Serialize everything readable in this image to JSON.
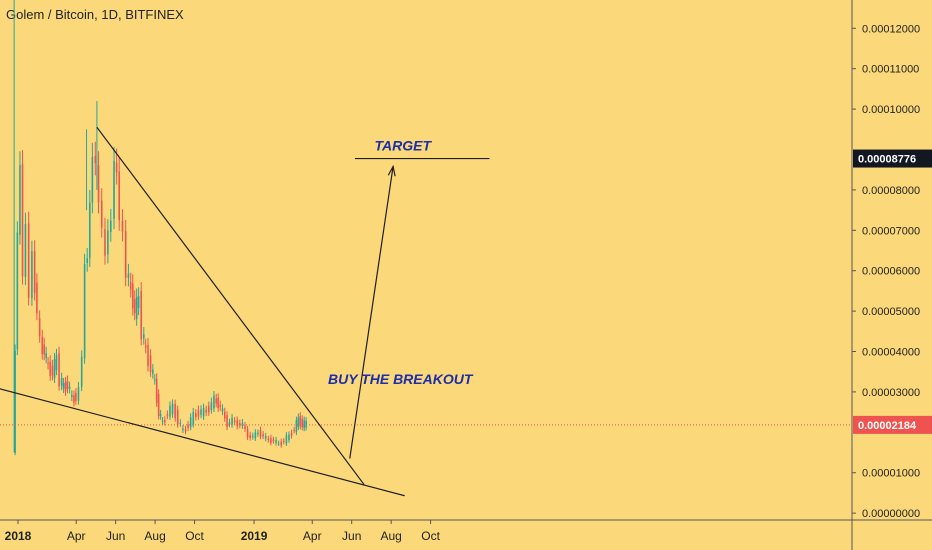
{
  "header": {
    "title": "Golem / Bitcoin, 1D, BITFINEX"
  },
  "colors": {
    "background": "#fbd97a",
    "up_candle": "#26a69a",
    "down_candle": "#ef5350",
    "line": "#1f1f1f",
    "annotation_text": "#1c2ea8",
    "price_line": "#ef5350"
  },
  "chart_data": {
    "type": "candlestick",
    "symbol": "Golem / Bitcoin",
    "interval": "1D",
    "exchange": "BITFINEX",
    "x_tick_labels": [
      "2018",
      "Apr",
      "Jun",
      "Aug",
      "Oct",
      "2019",
      "Apr",
      "Jun",
      "Aug",
      "Oct"
    ],
    "x_tick_dates": [
      "2018-01-01",
      "2018-04-01",
      "2018-06-01",
      "2018-08-01",
      "2018-10-01",
      "2019-01-01",
      "2019-04-01",
      "2019-06-01",
      "2019-08-01",
      "2019-10-01"
    ],
    "y_tick_labels": [
      "0.00012000",
      "0.00011000",
      "0.00010000",
      "0.00008000",
      "0.00007000",
      "0.00006000",
      "0.00005000",
      "0.00004000",
      "0.00003000",
      "0.00001000",
      "0.00000000"
    ],
    "y_tick_values": [
      0.00012,
      0.00011,
      0.0001,
      8e-05,
      7e-05,
      6e-05,
      5e-05,
      4e-05,
      3e-05,
      1e-05,
      0.0
    ],
    "ylim": [
      -1.7e-06,
      0.000127
    ],
    "price_series": [
      [
        "2017-12-26",
        1.5e-05
      ],
      [
        "2017-12-29",
        4e-05
      ],
      [
        "2018-01-02",
        7e-05
      ],
      [
        "2018-01-06",
        8.5e-05
      ],
      [
        "2018-01-10",
        6e-05
      ],
      [
        "2018-01-15",
        7e-05
      ],
      [
        "2018-01-20",
        5.5e-05
      ],
      [
        "2018-01-25",
        6.3e-05
      ],
      [
        "2018-02-01",
        5e-05
      ],
      [
        "2018-02-06",
        4.2e-05
      ],
      [
        "2018-02-12",
        4e-05
      ],
      [
        "2018-02-18",
        3.6e-05
      ],
      [
        "2018-02-25",
        3.5e-05
      ],
      [
        "2018-03-03",
        3.8e-05
      ],
      [
        "2018-03-08",
        3.3e-05
      ],
      [
        "2018-03-14",
        3.1e-05
      ],
      [
        "2018-03-20",
        3.2e-05
      ],
      [
        "2018-03-27",
        2.8e-05
      ],
      [
        "2018-04-02",
        2.9e-05
      ],
      [
        "2018-04-07",
        3e-05
      ],
      [
        "2018-04-12",
        4e-05
      ],
      [
        "2018-04-16",
        6e-05
      ],
      [
        "2018-04-20",
        6.5e-05
      ],
      [
        "2018-04-24",
        7.5e-05
      ],
      [
        "2018-04-28",
        9e-05
      ],
      [
        "2018-05-03",
        8.5e-05
      ],
      [
        "2018-05-08",
        7.8e-05
      ],
      [
        "2018-05-13",
        7e-05
      ],
      [
        "2018-05-18",
        6.4e-05
      ],
      [
        "2018-05-22",
        7e-05
      ],
      [
        "2018-05-27",
        7.2e-05
      ],
      [
        "2018-06-01",
        8.8e-05
      ],
      [
        "2018-06-04",
        8.3e-05
      ],
      [
        "2018-06-09",
        7.4e-05
      ],
      [
        "2018-06-14",
        6.8e-05
      ],
      [
        "2018-06-19",
        6e-05
      ],
      [
        "2018-06-26",
        5.5e-05
      ],
      [
        "2018-07-02",
        5e-05
      ],
      [
        "2018-07-08",
        5.3e-05
      ],
      [
        "2018-07-13",
        4.5e-05
      ],
      [
        "2018-07-19",
        4e-05
      ],
      [
        "2018-07-27",
        3.6e-05
      ],
      [
        "2018-08-02",
        3.2e-05
      ],
      [
        "2018-08-08",
        2.5e-05
      ],
      [
        "2018-08-14",
        2.2e-05
      ],
      [
        "2018-08-22",
        2.5e-05
      ],
      [
        "2018-08-30",
        2.6e-05
      ],
      [
        "2018-09-07",
        2.3e-05
      ],
      [
        "2018-09-15",
        2e-05
      ],
      [
        "2018-09-23",
        2.2e-05
      ],
      [
        "2018-10-01",
        2.4e-05
      ],
      [
        "2018-10-09",
        2.5e-05
      ],
      [
        "2018-10-17",
        2.5e-05
      ],
      [
        "2018-10-25",
        2.6e-05
      ],
      [
        "2018-11-02",
        2.8e-05
      ],
      [
        "2018-11-08",
        2.7e-05
      ],
      [
        "2018-11-15",
        2.5e-05
      ],
      [
        "2018-11-22",
        2.2e-05
      ],
      [
        "2018-11-30",
        2.3e-05
      ],
      [
        "2018-12-08",
        2.2e-05
      ],
      [
        "2018-12-16",
        2.2e-05
      ],
      [
        "2018-12-24",
        1.9e-05
      ],
      [
        "2019-01-01",
        1.9e-05
      ],
      [
        "2019-01-09",
        2e-05
      ],
      [
        "2019-01-17",
        1.9e-05
      ],
      [
        "2019-01-25",
        1.8e-05
      ],
      [
        "2019-02-02",
        1.8e-05
      ],
      [
        "2019-02-10",
        1.7e-05
      ],
      [
        "2019-02-18",
        1.8e-05
      ],
      [
        "2019-02-26",
        1.9e-05
      ],
      [
        "2019-03-06",
        2.1e-05
      ],
      [
        "2019-03-12",
        2.3e-05
      ],
      [
        "2019-03-18",
        2.2e-05
      ],
      [
        "2019-03-24",
        2.2e-05
      ]
    ],
    "current_price": "0.00002184",
    "current_price_value": 2.184e-05,
    "target_price": "0.00008776",
    "target_price_value": 8.776e-05,
    "annotations": {
      "target": "TARGET",
      "buy_breakout": "BUY THE BREAKOUT"
    },
    "trendlines": [
      {
        "name": "upper-resistance",
        "points": [
          [
            "2018-05-03",
            9.55e-05
          ],
          [
            "2019-06-20",
            7.1e-06
          ]
        ]
      },
      {
        "name": "lower-support",
        "points": [
          [
            "2017-12-03",
            3.08e-05
          ],
          [
            "2019-08-22",
            4.3e-06
          ]
        ]
      },
      {
        "name": "target-level",
        "points": [
          [
            "2019-06-06",
            8.776e-05
          ],
          [
            "2019-12-31",
            8.776e-05
          ]
        ]
      },
      {
        "name": "breakout-arrow",
        "points": [
          [
            "2019-05-29",
            1.35e-05
          ],
          [
            "2019-08-04",
            8.58e-05
          ]
        ]
      }
    ],
    "grid": false
  }
}
